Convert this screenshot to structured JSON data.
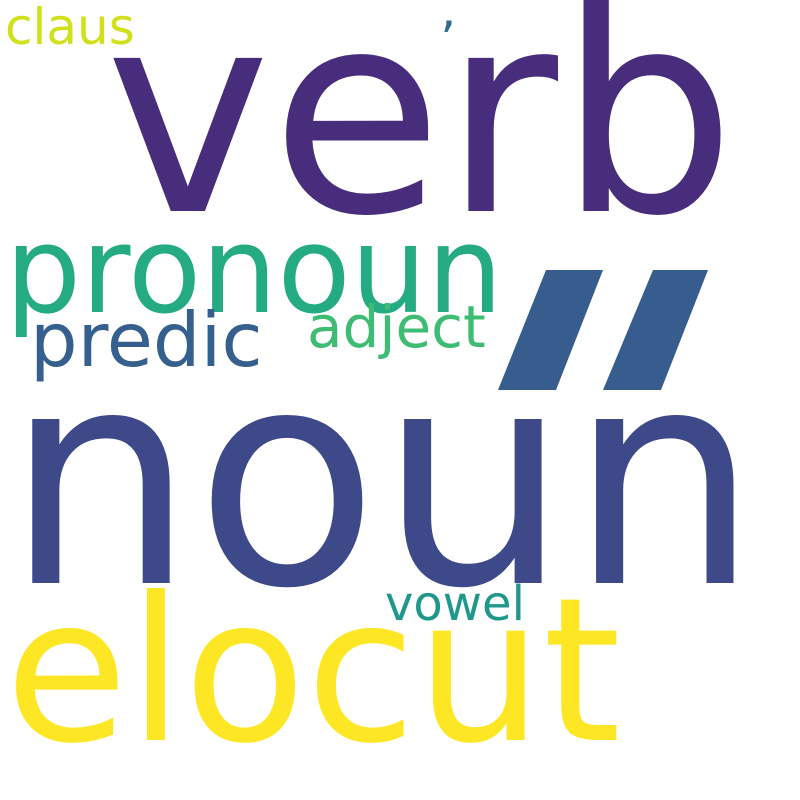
{
  "words": [
    {
      "text": "verb",
      "color": "#472d7b"
    },
    {
      "text": "noun",
      "color": "#3e4989"
    },
    {
      "text": "elocut",
      "color": "#fde725"
    },
    {
      "text": "pronoun",
      "color": "#25ab82"
    },
    {
      "text": "predic",
      "color": "#355f8d"
    },
    {
      "text": "adject",
      "color": "#3fbc73"
    },
    {
      "text": "vowel",
      "color": "#1f988b"
    },
    {
      "text": "claus",
      "color": "#d0e11c"
    },
    {
      "text": "’",
      "color": "#31688e"
    },
    {
      "text": "”",
      "color": "#365d8d"
    }
  ]
}
